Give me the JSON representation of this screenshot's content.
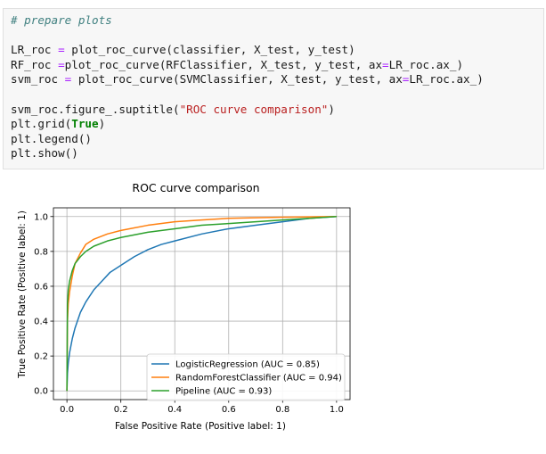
{
  "code_cell": {
    "lines": [
      [
        {
          "t": "# prepare plots",
          "c": "comment"
        }
      ],
      [],
      [
        {
          "t": "LR_roc "
        },
        {
          "t": "=",
          "c": "op"
        },
        {
          "t": " plot_roc_curve(classifier, X_test, y_test)"
        }
      ],
      [
        {
          "t": "RF_roc "
        },
        {
          "t": "=",
          "c": "op"
        },
        {
          "t": "plot_roc_curve(RFClassifier, X_test, y_test, ax"
        },
        {
          "t": "=",
          "c": "op"
        },
        {
          "t": "LR_roc.ax_)"
        }
      ],
      [
        {
          "t": "svm_roc "
        },
        {
          "t": "=",
          "c": "op"
        },
        {
          "t": " plot_roc_curve(SVMClassifier, X_test, y_test, ax"
        },
        {
          "t": "=",
          "c": "op"
        },
        {
          "t": "LR_roc.ax_)"
        }
      ],
      [],
      [
        {
          "t": "svm_roc.figure_.suptitle("
        },
        {
          "t": "\"ROC curve comparison\"",
          "c": "str"
        },
        {
          "t": ")"
        }
      ],
      [
        {
          "t": "plt.grid("
        },
        {
          "t": "True",
          "c": "kw"
        },
        {
          "t": ")"
        }
      ],
      [
        {
          "t": "plt.legend()"
        }
      ],
      [
        {
          "t": "plt.show()"
        }
      ]
    ]
  },
  "chart_data": {
    "type": "line",
    "title": "ROC curve comparison",
    "xlabel": "False Positive Rate (Positive label: 1)",
    "ylabel": "True Positive Rate (Positive label: 1)",
    "xlim": [
      -0.05,
      1.05
    ],
    "ylim": [
      -0.05,
      1.05
    ],
    "xticks": [
      {
        "v": 0.0,
        "label": "0.0"
      },
      {
        "v": 0.2,
        "label": "0.2"
      },
      {
        "v": 0.4,
        "label": "0.4"
      },
      {
        "v": 0.6,
        "label": "0.6"
      },
      {
        "v": 0.8,
        "label": "0.8"
      },
      {
        "v": 1.0,
        "label": "1.0"
      }
    ],
    "yticks": [
      {
        "v": 0.0,
        "label": "0.0"
      },
      {
        "v": 0.2,
        "label": "0.2"
      },
      {
        "v": 0.4,
        "label": "0.4"
      },
      {
        "v": 0.6,
        "label": "0.6"
      },
      {
        "v": 0.8,
        "label": "0.8"
      },
      {
        "v": 1.0,
        "label": "1.0"
      }
    ],
    "grid": true,
    "legend_position": "lower-right",
    "series": [
      {
        "name": "LogisticRegression (AUC = 0.85)",
        "color": "#1f77b4",
        "x": [
          0,
          0.002,
          0.005,
          0.01,
          0.02,
          0.03,
          0.05,
          0.07,
          0.1,
          0.13,
          0.16,
          0.2,
          0.25,
          0.3,
          0.35,
          0.4,
          0.5,
          0.6,
          0.7,
          0.8,
          0.9,
          1.0
        ],
        "y": [
          0,
          0.1,
          0.16,
          0.22,
          0.3,
          0.36,
          0.45,
          0.51,
          0.58,
          0.63,
          0.68,
          0.72,
          0.77,
          0.81,
          0.84,
          0.86,
          0.9,
          0.93,
          0.95,
          0.97,
          0.99,
          1.0
        ]
      },
      {
        "name": "RandomForestClassifier (AUC = 0.94)",
        "color": "#ff7f0e",
        "x": [
          0,
          0.002,
          0.005,
          0.01,
          0.02,
          0.03,
          0.05,
          0.07,
          0.1,
          0.15,
          0.2,
          0.3,
          0.4,
          0.5,
          0.6,
          0.7,
          0.8,
          0.9,
          1.0
        ],
        "y": [
          0,
          0.4,
          0.5,
          0.57,
          0.66,
          0.73,
          0.79,
          0.84,
          0.87,
          0.9,
          0.92,
          0.95,
          0.97,
          0.98,
          0.99,
          0.993,
          0.996,
          0.998,
          1.0
        ]
      },
      {
        "name": "Pipeline (AUC = 0.93)",
        "color": "#2ca02c",
        "x": [
          0,
          0.002,
          0.005,
          0.01,
          0.02,
          0.03,
          0.05,
          0.07,
          0.1,
          0.15,
          0.2,
          0.3,
          0.4,
          0.5,
          0.6,
          0.7,
          0.8,
          0.9,
          1.0
        ],
        "y": [
          0,
          0.5,
          0.58,
          0.63,
          0.69,
          0.73,
          0.77,
          0.8,
          0.83,
          0.86,
          0.88,
          0.91,
          0.93,
          0.95,
          0.96,
          0.97,
          0.98,
          0.99,
          1.0
        ]
      }
    ]
  }
}
